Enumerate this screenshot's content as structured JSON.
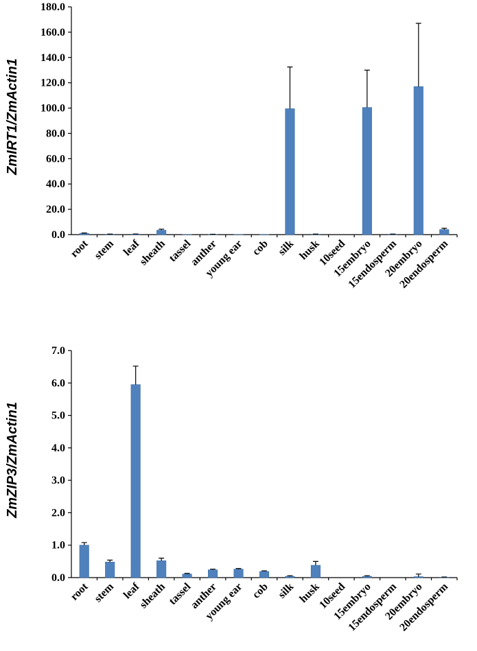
{
  "chart_data": [
    {
      "type": "bar",
      "title": "",
      "xlabel": "",
      "ylabel": "ZmIRT1/ZmActin1",
      "ylim": [
        0,
        180
      ],
      "yticks": [
        "0.0",
        "20.0",
        "40.0",
        "60.0",
        "80.0",
        "100.0",
        "120.0",
        "140.0",
        "160.0",
        "180.0"
      ],
      "categories": [
        "root",
        "stem",
        "leaf",
        "sheath",
        "tassel",
        "anther",
        "young ear",
        "cob",
        "silk",
        "husk",
        "10seed",
        "15embryo",
        "15endosperm",
        "20embryo",
        "20endosperm"
      ],
      "values": [
        1.0,
        0.3,
        0.4,
        3.5,
        0.1,
        0.2,
        0.1,
        0.1,
        99.5,
        0.3,
        0.0,
        100.5,
        0.3,
        117.0,
        4.0
      ],
      "errors": [
        0.3,
        0.1,
        0.1,
        0.8,
        0.0,
        0.1,
        0.0,
        0.0,
        33.0,
        0.1,
        0.0,
        29.5,
        0.1,
        50.0,
        1.0
      ],
      "color": "#4f81bd"
    },
    {
      "type": "bar",
      "title": "",
      "xlabel": "",
      "ylabel": "ZmZIP3/ZmActin1",
      "ylim": [
        0,
        7
      ],
      "yticks": [
        "0.0",
        "1.0",
        "2.0",
        "3.0",
        "4.0",
        "5.0",
        "6.0",
        "7.0"
      ],
      "categories": [
        "root",
        "stem",
        "leaf",
        "sheath",
        "tassel",
        "anther",
        "young ear",
        "cob",
        "silk",
        "husk",
        "10seed",
        "15embryo",
        "15endosperm",
        "20embryo",
        "20endosperm"
      ],
      "values": [
        1.0,
        0.48,
        5.95,
        0.52,
        0.11,
        0.24,
        0.26,
        0.19,
        0.04,
        0.38,
        0.0,
        0.04,
        0.0,
        0.03,
        0.01
      ],
      "errors": [
        0.08,
        0.06,
        0.57,
        0.08,
        0.02,
        0.02,
        0.02,
        0.02,
        0.02,
        0.12,
        0.0,
        0.02,
        0.0,
        0.08,
        0.01
      ],
      "color": "#4f81bd"
    }
  ]
}
